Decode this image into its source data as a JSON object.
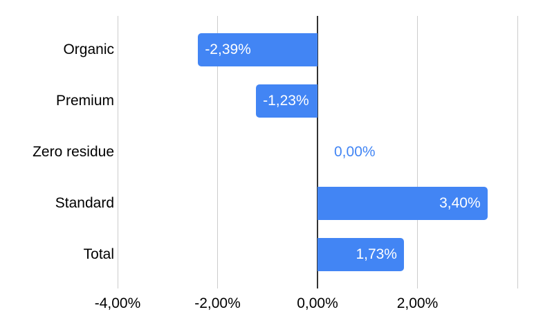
{
  "chart_data": {
    "type": "bar",
    "orientation": "horizontal",
    "title": "",
    "categories": [
      "Organic",
      "Premium",
      "Zero residue",
      "Standard",
      "Total"
    ],
    "values": [
      -2.39,
      -1.23,
      0.0,
      3.4,
      1.73
    ],
    "value_labels": [
      "-2,39%",
      "-1,23%",
      "0,00%",
      "3,40%",
      "1,73%"
    ],
    "xlim": [
      -4,
      4
    ],
    "x_axis": {
      "gridlines": [
        -4,
        -2,
        0,
        2,
        4
      ],
      "ticks": [
        {
          "value": -4,
          "label": "-4,00%"
        },
        {
          "value": -2,
          "label": "-2,00%"
        },
        {
          "value": 0,
          "label": "0,00%"
        },
        {
          "value": 2,
          "label": "2,00%"
        }
      ]
    },
    "legend_position": "none",
    "grid": true,
    "colors": {
      "bar": "#4285f4",
      "bar_value_text": "#ffffff",
      "zero_value_text": "#4285f4",
      "gridline": "#cccccc",
      "baseline": "#333333",
      "axis_text": "#000000",
      "background": "#ffffff"
    }
  }
}
